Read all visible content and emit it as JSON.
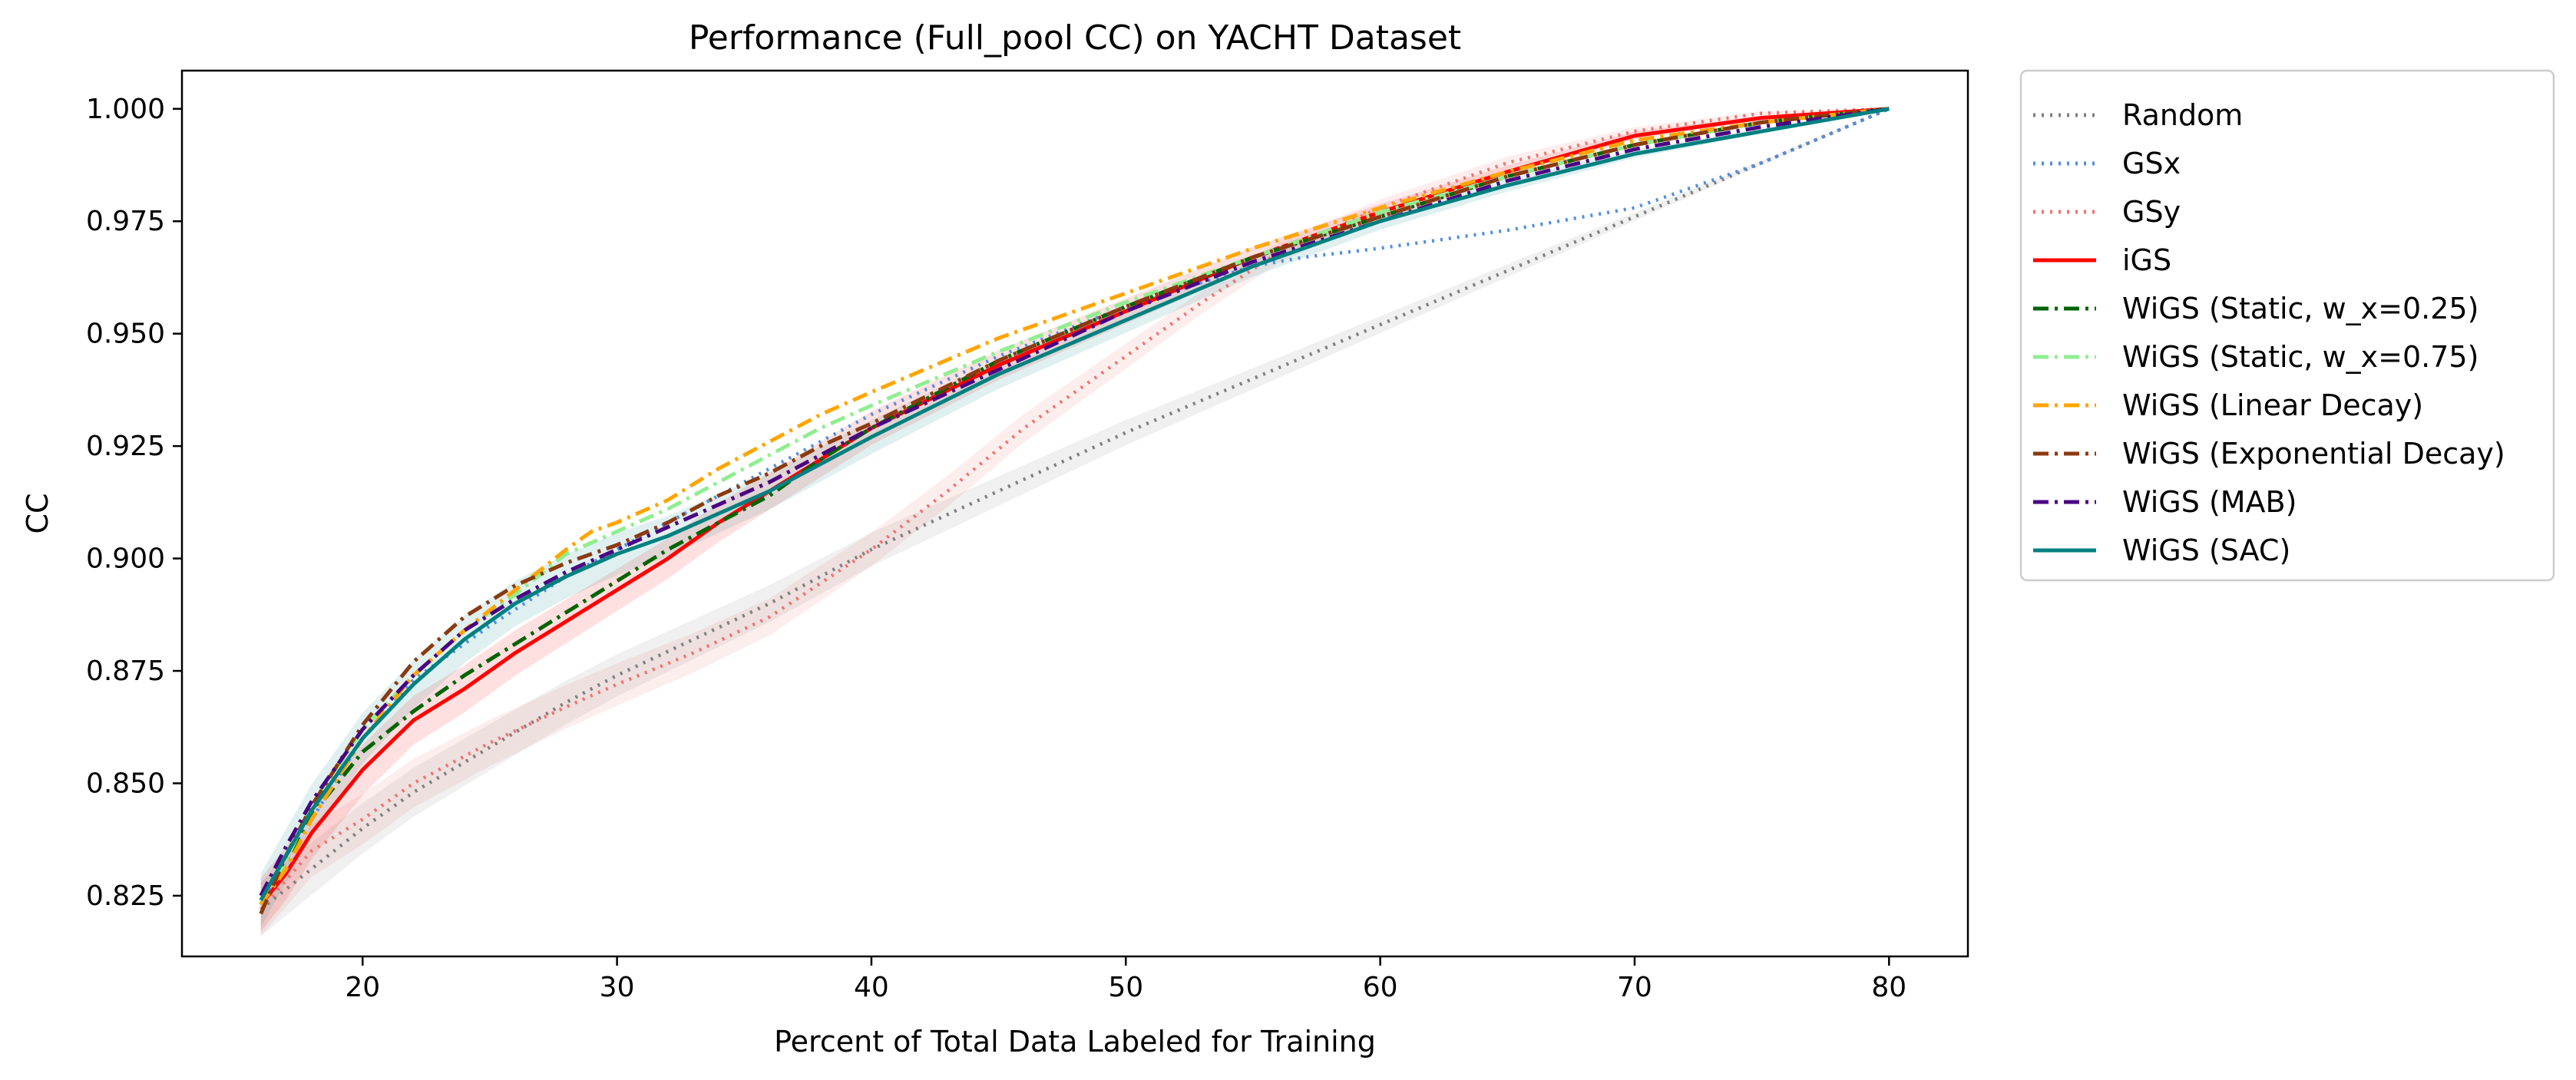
{
  "chart_data": {
    "type": "line",
    "title": "Performance (Full_pool CC) on YACHT Dataset",
    "xlabel": "Percent of Total Data Labeled for Training",
    "ylabel": "CC",
    "xlim": [
      12.9,
      83.1
    ],
    "ylim": [
      0.8115,
      1.0085
    ],
    "xticks": [
      20,
      30,
      40,
      50,
      60,
      70,
      80
    ],
    "yticks": [
      0.825,
      0.85,
      0.875,
      0.9,
      0.925,
      0.95,
      0.975,
      1.0
    ],
    "xtick_labels": [
      "20",
      "30",
      "40",
      "50",
      "60",
      "70",
      "80"
    ],
    "ytick_labels": [
      "0.825",
      "0.850",
      "0.875",
      "0.900",
      "0.925",
      "0.950",
      "0.975",
      "1.000"
    ],
    "grid": false,
    "legend": "outside-right",
    "series": [
      {
        "name": "Random",
        "color": "#808080",
        "dash": "dotted",
        "band": true,
        "x": [
          16,
          18,
          20,
          22,
          25,
          28,
          30,
          33,
          36,
          40,
          45,
          50,
          55,
          60,
          65,
          70,
          75,
          80
        ],
        "y": [
          0.822,
          0.831,
          0.84,
          0.848,
          0.858,
          0.868,
          0.874,
          0.882,
          0.89,
          0.902,
          0.915,
          0.928,
          0.94,
          0.952,
          0.964,
          0.976,
          0.988,
          1.0
        ]
      },
      {
        "name": "GSx",
        "color": "#4f8fe6",
        "dash": "dotted",
        "band": false,
        "x": [
          16,
          17,
          18,
          20,
          22,
          25,
          28,
          30,
          35,
          40,
          45,
          50,
          55,
          57,
          60,
          65,
          70,
          72,
          75,
          80
        ],
        "y": [
          0.823,
          0.834,
          0.842,
          0.86,
          0.873,
          0.885,
          0.896,
          0.902,
          0.917,
          0.932,
          0.945,
          0.956,
          0.965,
          0.967,
          0.969,
          0.973,
          0.978,
          0.982,
          0.988,
          1.0
        ]
      },
      {
        "name": "GSy",
        "color": "#f07470",
        "dash": "dotted",
        "band": true,
        "x": [
          16,
          18,
          20,
          22,
          25,
          28,
          30,
          33,
          36,
          40,
          43,
          46,
          50,
          53,
          56,
          60,
          65,
          70,
          75,
          80
        ],
        "y": [
          0.822,
          0.835,
          0.842,
          0.85,
          0.859,
          0.867,
          0.872,
          0.879,
          0.887,
          0.902,
          0.915,
          0.929,
          0.945,
          0.957,
          0.968,
          0.978,
          0.988,
          0.995,
          0.999,
          1.0
        ]
      },
      {
        "name": "iGS",
        "color": "#ff0000",
        "dash": "solid",
        "band": true,
        "x": [
          16,
          17,
          18,
          20,
          22,
          24,
          26,
          28,
          30,
          32,
          34,
          36,
          40,
          45,
          50,
          55,
          60,
          65,
          70,
          75,
          80
        ],
        "y": [
          0.823,
          0.83,
          0.839,
          0.853,
          0.864,
          0.871,
          0.879,
          0.886,
          0.893,
          0.9,
          0.908,
          0.915,
          0.929,
          0.943,
          0.955,
          0.967,
          0.977,
          0.986,
          0.994,
          0.998,
          1.0
        ]
      },
      {
        "name": "WiGS (Static, w_x=0.25)",
        "color": "#006400",
        "dash": "dashdot",
        "band": false,
        "x": [
          16,
          17,
          18,
          20,
          22,
          24,
          26,
          28,
          30,
          32,
          34,
          36,
          38,
          40,
          45,
          50,
          55,
          60,
          65,
          70,
          75,
          80
        ],
        "y": [
          0.823,
          0.833,
          0.843,
          0.857,
          0.866,
          0.874,
          0.881,
          0.888,
          0.895,
          0.902,
          0.908,
          0.914,
          0.922,
          0.929,
          0.944,
          0.956,
          0.967,
          0.976,
          0.985,
          0.992,
          0.997,
          1.0
        ]
      },
      {
        "name": "WiGS (Static, w_x=0.75)",
        "color": "#90ee90",
        "dash": "dashdot",
        "band": false,
        "x": [
          16,
          17,
          18,
          20,
          22,
          24,
          26,
          28,
          30,
          32,
          34,
          36,
          38,
          40,
          45,
          50,
          55,
          60,
          65,
          70,
          75,
          80
        ],
        "y": [
          0.823,
          0.833,
          0.845,
          0.862,
          0.874,
          0.884,
          0.892,
          0.901,
          0.906,
          0.911,
          0.917,
          0.923,
          0.929,
          0.934,
          0.946,
          0.957,
          0.967,
          0.977,
          0.985,
          0.992,
          0.997,
          1.0
        ]
      },
      {
        "name": "WiGS (Linear Decay)",
        "color": "#ffa500",
        "dash": "dashdot",
        "band": false,
        "x": [
          16,
          17,
          18,
          20,
          22,
          24,
          26,
          28,
          29,
          30,
          32,
          34,
          36,
          38,
          40,
          45,
          50,
          55,
          60,
          65,
          70,
          75,
          80
        ],
        "y": [
          0.823,
          0.831,
          0.842,
          0.86,
          0.874,
          0.884,
          0.893,
          0.902,
          0.906,
          0.908,
          0.913,
          0.92,
          0.926,
          0.932,
          0.937,
          0.949,
          0.959,
          0.969,
          0.978,
          0.986,
          0.993,
          0.997,
          1.0
        ]
      },
      {
        "name": "WiGS (Exponential Decay)",
        "color": "#8b3a0f",
        "dash": "dashdot",
        "band": false,
        "x": [
          16,
          17,
          18,
          20,
          22,
          24,
          26,
          28,
          30,
          32,
          34,
          36,
          38,
          40,
          45,
          50,
          55,
          60,
          65,
          70,
          75,
          80
        ],
        "y": [
          0.821,
          0.834,
          0.845,
          0.863,
          0.877,
          0.887,
          0.894,
          0.899,
          0.903,
          0.908,
          0.914,
          0.919,
          0.925,
          0.93,
          0.944,
          0.956,
          0.967,
          0.976,
          0.985,
          0.992,
          0.997,
          1.0
        ]
      },
      {
        "name": "WiGS (MAB)",
        "color": "#4b0082",
        "dash": "dashdot",
        "band": false,
        "x": [
          16,
          17,
          18,
          20,
          22,
          24,
          26,
          28,
          30,
          32,
          34,
          36,
          38,
          40,
          45,
          50,
          55,
          60,
          65,
          70,
          75,
          80
        ],
        "y": [
          0.825,
          0.836,
          0.846,
          0.862,
          0.874,
          0.884,
          0.891,
          0.897,
          0.902,
          0.907,
          0.912,
          0.917,
          0.923,
          0.929,
          0.942,
          0.955,
          0.966,
          0.975,
          0.984,
          0.991,
          0.996,
          1.0
        ]
      },
      {
        "name": "WiGS (SAC)",
        "color": "#008080",
        "dash": "solid",
        "band": true,
        "x": [
          16,
          17,
          18,
          20,
          22,
          24,
          26,
          28,
          30,
          32,
          34,
          36,
          38,
          40,
          45,
          50,
          55,
          60,
          65,
          70,
          75,
          80
        ],
        "y": [
          0.824,
          0.834,
          0.844,
          0.86,
          0.872,
          0.882,
          0.89,
          0.896,
          0.901,
          0.905,
          0.91,
          0.915,
          0.921,
          0.927,
          0.941,
          0.953,
          0.965,
          0.975,
          0.983,
          0.99,
          0.995,
          1.0
        ]
      }
    ]
  }
}
